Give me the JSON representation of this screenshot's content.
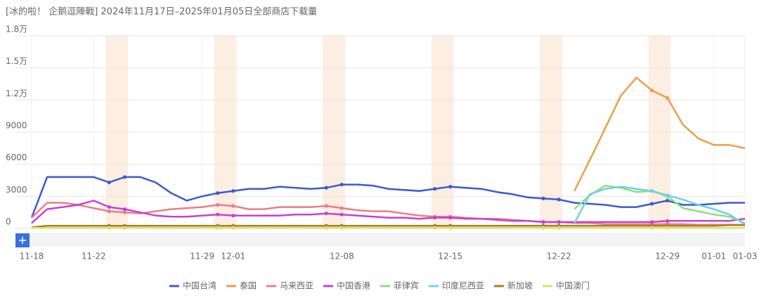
{
  "chart_data": {
    "type": "line",
    "title": "[冰的啦！ 企鹅逗陣戰] 2024年11月17日–2025年01月05日全部商店下载量",
    "categories": [
      "11-18",
      null,
      null,
      null,
      "11-22",
      null,
      null,
      null,
      null,
      null,
      null,
      "11-29",
      null,
      "12-01",
      null,
      null,
      null,
      null,
      null,
      null,
      "12-08",
      null,
      null,
      null,
      null,
      null,
      null,
      "12-15",
      null,
      null,
      null,
      null,
      null,
      null,
      "12-22",
      null,
      null,
      null,
      null,
      null,
      null,
      "12-29",
      null,
      null,
      "01-01",
      null,
      "01-03"
    ],
    "ylim": [
      0,
      18000
    ],
    "yticks": [
      0,
      3000,
      6000,
      9000,
      {
        "value": 12000,
        "label": "1.2万"
      },
      {
        "value": 15000,
        "label": "1.5万"
      },
      {
        "value": 18000,
        "label": "1.8万"
      }
    ],
    "grid": true,
    "legend": "bottom",
    "series": [
      {
        "name": "中国台湾",
        "color": "#3a5bcf",
        "values": [
          1000,
          4800,
          4800,
          4800,
          4800,
          4300,
          4800,
          4800,
          4300,
          3300,
          2600,
          3000,
          3300,
          3500,
          3700,
          3700,
          3900,
          3800,
          3700,
          3800,
          4100,
          4100,
          4000,
          3700,
          3600,
          3500,
          3700,
          3900,
          3800,
          3700,
          3400,
          3200,
          2900,
          2800,
          2700,
          2400,
          2300,
          2200,
          2000,
          2000,
          2300,
          2600,
          2200,
          2200,
          2300,
          2400,
          2400
        ]
      },
      {
        "name": "泰国",
        "color": "#e9a04a",
        "values": [
          null,
          null,
          null,
          null,
          null,
          null,
          null,
          null,
          null,
          null,
          null,
          null,
          null,
          null,
          null,
          null,
          null,
          null,
          null,
          null,
          null,
          null,
          null,
          null,
          null,
          null,
          null,
          null,
          null,
          null,
          null,
          null,
          null,
          null,
          null,
          3500,
          6400,
          9400,
          12400,
          14100,
          12900,
          12200,
          9700,
          8400,
          7800,
          7800,
          7500
        ]
      },
      {
        "name": "马来西亚",
        "color": "#ea7e85",
        "values": [
          1000,
          2400,
          2400,
          2200,
          1900,
          1600,
          1500,
          1400,
          1600,
          1800,
          1900,
          2000,
          2200,
          2100,
          1800,
          1800,
          2000,
          2000,
          2000,
          2100,
          1900,
          1700,
          1600,
          1600,
          1400,
          1200,
          1100,
          1100,
          1000,
          900,
          900,
          800,
          700,
          600,
          600,
          500,
          500,
          400,
          400,
          400,
          400,
          400,
          400,
          350,
          350,
          350,
          350
        ]
      },
      {
        "name": "中国香港",
        "color": "#c83fd6",
        "values": [
          500,
          1800,
          2000,
          2200,
          2600,
          2000,
          1800,
          1500,
          1200,
          1100,
          1100,
          1200,
          1300,
          1200,
          1200,
          1200,
          1200,
          1300,
          1300,
          1400,
          1300,
          1200,
          1100,
          1000,
          1000,
          900,
          1000,
          1000,
          900,
          900,
          800,
          700,
          700,
          600,
          600,
          600,
          600,
          600,
          600,
          600,
          600,
          700,
          700,
          700,
          700,
          700,
          900
        ]
      },
      {
        "name": "菲律宾",
        "color": "#8de07a",
        "values": [
          null,
          null,
          null,
          null,
          null,
          null,
          null,
          null,
          null,
          null,
          null,
          null,
          null,
          null,
          null,
          null,
          null,
          null,
          null,
          null,
          null,
          null,
          null,
          null,
          null,
          null,
          null,
          null,
          null,
          null,
          null,
          null,
          null,
          null,
          null,
          1800,
          3100,
          4000,
          3800,
          3400,
          3500,
          3000,
          1900,
          1600,
          1300,
          1100,
          500
        ]
      },
      {
        "name": "印度尼西亚",
        "color": "#6dd0ee",
        "values": [
          null,
          null,
          null,
          null,
          null,
          null,
          null,
          null,
          null,
          null,
          null,
          null,
          null,
          null,
          null,
          null,
          null,
          null,
          null,
          null,
          null,
          null,
          null,
          null,
          null,
          null,
          null,
          null,
          null,
          null,
          null,
          null,
          null,
          null,
          null,
          500,
          3200,
          3700,
          3900,
          3700,
          3500,
          3100,
          2700,
          2200,
          1800,
          1300,
          400
        ]
      },
      {
        "name": "新加坡",
        "color": "#b07a30",
        "values": [
          100,
          250,
          250,
          250,
          250,
          250,
          250,
          250,
          250,
          250,
          250,
          250,
          250,
          250,
          250,
          250,
          250,
          250,
          250,
          250,
          250,
          250,
          250,
          250,
          250,
          250,
          250,
          250,
          250,
          250,
          250,
          250,
          250,
          250,
          250,
          250,
          250,
          250,
          250,
          250,
          250,
          250,
          250,
          250,
          250,
          300,
          300
        ]
      },
      {
        "name": "中国澳门",
        "color": "#d4e85a",
        "values": [
          50,
          50,
          50,
          50,
          50,
          50,
          50,
          50,
          50,
          50,
          50,
          50,
          50,
          50,
          50,
          50,
          50,
          50,
          50,
          50,
          50,
          50,
          50,
          50,
          50,
          50,
          50,
          50,
          50,
          50,
          50,
          50,
          50,
          50,
          50,
          50,
          50,
          50,
          50,
          50,
          50,
          50,
          50,
          50,
          50,
          50,
          50
        ]
      }
    ]
  }
}
